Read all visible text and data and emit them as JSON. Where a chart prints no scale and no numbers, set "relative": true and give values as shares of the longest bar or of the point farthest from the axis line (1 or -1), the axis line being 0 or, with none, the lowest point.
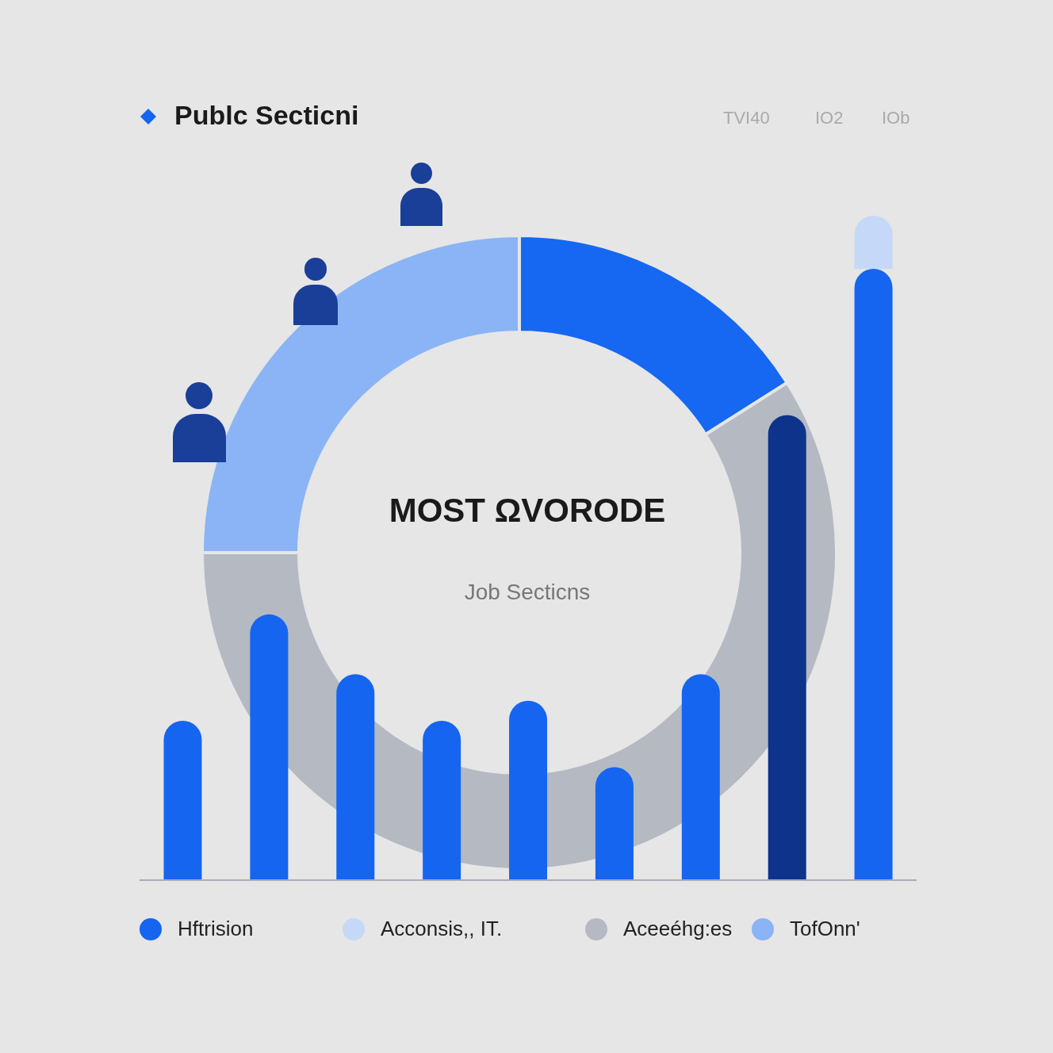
{
  "chart_data": [
    {
      "type": "bar",
      "title": "Publc Secticni",
      "annotations": [
        "TVI40",
        "IO2",
        "IOb"
      ],
      "relative": true,
      "stacked": true,
      "legend": "bottom",
      "categories": [
        null,
        null,
        null,
        null,
        null,
        null,
        null,
        null,
        null
      ],
      "series": [
        {
          "name": "Hftrision",
          "color": "#1565f0",
          "colors": [
            "#1565f0",
            "#1565f0",
            "#1565f0",
            "#1565f0",
            "#1565f0",
            "#1565f0",
            "#1565f0",
            "#0d348a",
            "#1565f0"
          ],
          "values": [
            0.24,
            0.4,
            0.31,
            0.24,
            0.27,
            0.17,
            0.31,
            0.7,
            0.92
          ]
        },
        {
          "name": "Acconsis,, IT.",
          "color": "#c5d8f8",
          "values": [
            null,
            null,
            null,
            null,
            null,
            null,
            null,
            null,
            0.08
          ]
        }
      ]
    },
    {
      "type": "donut",
      "title": "MOST ΩVORODE",
      "subtitle": "Job Secticns",
      "legend": "bottom",
      "categories": [
        null,
        "Aceeéhg:es",
        "TofOnn'"
      ],
      "values": [
        16,
        59,
        25
      ],
      "colors": [
        "#1668f2",
        "#b4b9c2",
        "#8ab4f5"
      ]
    }
  ]
}
